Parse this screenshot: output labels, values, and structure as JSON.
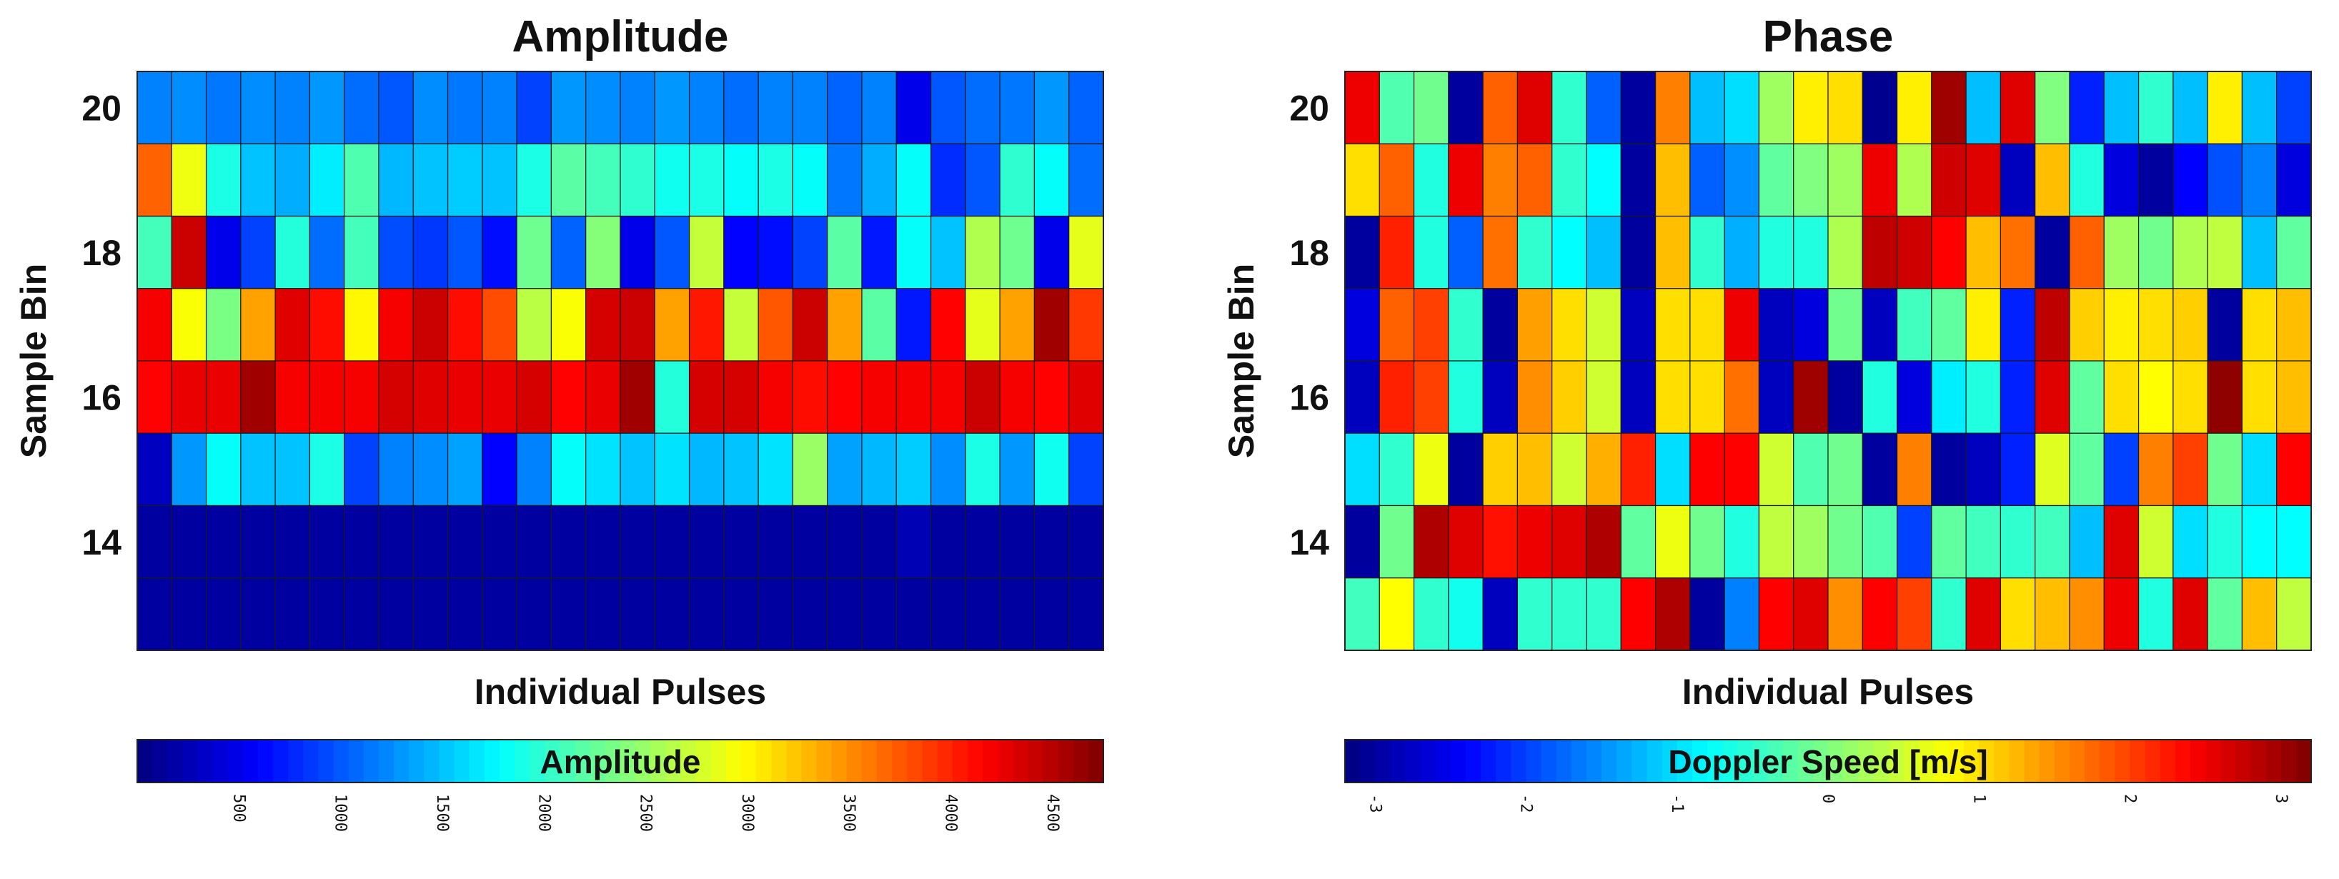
{
  "chart_data": [
    {
      "type": "heatmap",
      "title": "Amplitude",
      "xlabel": "Individual Pulses",
      "ylabel": "Sample Bin",
      "y_rows": [
        20,
        19,
        18,
        17,
        16,
        15,
        14,
        13
      ],
      "y_tick_labels": [
        "20",
        "18",
        "16",
        "14"
      ],
      "y_ticks": [
        20,
        18,
        16,
        14
      ],
      "n_pulses": 28,
      "colorbar": {
        "label": "Amplitude",
        "range": [
          0,
          4750
        ],
        "ticks": [
          500,
          1000,
          1500,
          2000,
          2500,
          3000,
          3500,
          4000,
          4500
        ],
        "tick_labels": [
          "500",
          "1000",
          "1500",
          "2000",
          "2500",
          "3000",
          "3500",
          "4000",
          "4500"
        ]
      },
      "values": [
        [
          1200,
          1250,
          1150,
          1250,
          1200,
          1300,
          1100,
          1000,
          1250,
          1150,
          1200,
          900,
          1300,
          1250,
          1200,
          1300,
          1200,
          1100,
          1200,
          1200,
          1050,
          1200,
          500,
          1000,
          1100,
          1150,
          1300,
          1050
        ],
        [
          3700,
          2900,
          1900,
          1500,
          1400,
          1700,
          2150,
          1450,
          1500,
          1550,
          1500,
          1900,
          2200,
          2100,
          2000,
          1850,
          1900,
          1800,
          1900,
          1800,
          1150,
          1400,
          1800,
          800,
          1000,
          2000,
          1800,
          1100
        ],
        [
          2100,
          4400,
          500,
          900,
          1950,
          1100,
          2100,
          950,
          850,
          1000,
          650,
          2300,
          1050,
          2400,
          500,
          1000,
          2700,
          600,
          650,
          900,
          2200,
          700,
          1800,
          1500,
          2600,
          2300,
          500,
          2850
        ],
        [
          4200,
          2950,
          2350,
          3400,
          4300,
          4100,
          3000,
          4200,
          4400,
          4100,
          3800,
          2650,
          2950,
          4350,
          4400,
          3400,
          4050,
          2700,
          3750,
          4400,
          3400,
          2200,
          700,
          4150,
          2850,
          3400,
          4600,
          3900
        ],
        [
          4150,
          4250,
          4250,
          4600,
          4200,
          4200,
          4200,
          4350,
          4300,
          4250,
          4250,
          4350,
          4150,
          4250,
          4600,
          1950,
          4350,
          4350,
          4200,
          4100,
          4150,
          4200,
          4200,
          4200,
          4400,
          4200,
          4150,
          4300
        ],
        [
          300,
          1300,
          1800,
          1500,
          1500,
          1900,
          900,
          1200,
          1250,
          1350,
          600,
          1200,
          1800,
          1650,
          1500,
          1650,
          1450,
          1500,
          1650,
          2500,
          1350,
          1450,
          1550,
          1250,
          1900,
          1300,
          1850,
          900
        ],
        [
          150,
          150,
          150,
          150,
          150,
          150,
          150,
          150,
          150,
          150,
          150,
          150,
          150,
          150,
          150,
          150,
          150,
          150,
          150,
          150,
          150,
          150,
          250,
          150,
          150,
          150,
          150,
          150
        ],
        [
          150,
          150,
          150,
          150,
          150,
          150,
          150,
          150,
          150,
          150,
          150,
          150,
          150,
          150,
          150,
          150,
          150,
          150,
          150,
          150,
          150,
          150,
          150,
          150,
          150,
          150,
          150,
          150
        ]
      ]
    },
    {
      "type": "heatmap",
      "title": "Phase",
      "xlabel": "Individual Pulses",
      "ylabel": "Sample Bin",
      "y_rows": [
        20,
        19,
        18,
        17,
        16,
        15,
        14,
        13
      ],
      "y_tick_labels": [
        "20",
        "18",
        "16",
        "14"
      ],
      "y_ticks": [
        20,
        18,
        16,
        14
      ],
      "n_pulses": 28,
      "colorbar": {
        "label": "Doppler Speed [m/s]",
        "range": [
          -3.2,
          3.2
        ],
        "ticks": [
          -3,
          -2,
          -1,
          0,
          1,
          2,
          3
        ],
        "tick_labels": [
          "-3",
          "-2",
          "-1",
          "0",
          "1",
          "2",
          "3"
        ]
      },
      "values": [
        [
          2.5,
          -0.3,
          -0.1,
          -3.0,
          1.8,
          2.6,
          -0.5,
          -1.8,
          -3.0,
          1.6,
          -1.2,
          -1.0,
          0.2,
          0.9,
          1.0,
          -3.1,
          0.9,
          3.0,
          -1.2,
          2.6,
          0.0,
          -2.2,
          -1.2,
          -0.5,
          -1.2,
          0.9,
          -1.2,
          -2.0
        ],
        [
          1.0,
          1.8,
          -0.6,
          2.5,
          1.6,
          1.8,
          -0.5,
          -0.8,
          -3.0,
          1.2,
          -1.8,
          -1.5,
          -0.2,
          0.0,
          0.2,
          2.5,
          0.3,
          2.7,
          2.6,
          -2.8,
          1.2,
          -0.6,
          -2.6,
          -3.0,
          -2.4,
          -1.9,
          -1.6,
          -2.6
        ],
        [
          -3.0,
          2.2,
          -0.6,
          -1.8,
          1.7,
          -0.5,
          -0.8,
          -1.2,
          -3.0,
          1.2,
          -0.5,
          -1.3,
          -0.6,
          -0.6,
          0.3,
          2.8,
          2.7,
          2.4,
          1.2,
          1.7,
          -3.0,
          1.8,
          0.2,
          -0.1,
          0.3,
          0.4,
          -1.2,
          -0.2
        ],
        [
          -2.6,
          1.8,
          2.0,
          -0.5,
          -3.0,
          1.4,
          1.0,
          0.5,
          -2.8,
          1.0,
          1.0,
          2.5,
          -2.8,
          -2.6,
          -0.1,
          -2.8,
          -0.4,
          -0.2,
          0.9,
          -2.2,
          2.8,
          1.1,
          0.9,
          1.0,
          1.1,
          -3.0,
          1.0,
          1.2
        ],
        [
          -2.8,
          2.2,
          2.0,
          -0.6,
          -2.8,
          1.5,
          1.1,
          0.5,
          -2.8,
          1.0,
          1.0,
          1.7,
          -2.8,
          3.0,
          -3.0,
          -0.6,
          -2.6,
          -0.9,
          -0.6,
          -2.2,
          2.6,
          -0.2,
          1.0,
          0.8,
          1.0,
          3.1,
          1.0,
          1.2
        ],
        [
          -1.0,
          -0.5,
          0.7,
          -3.0,
          1.1,
          1.2,
          0.5,
          1.3,
          2.2,
          -1.0,
          2.4,
          2.4,
          0.5,
          -0.3,
          -0.1,
          -3.0,
          1.6,
          -3.0,
          -2.8,
          -2.2,
          0.6,
          -0.2,
          -2.0,
          1.6,
          2.0,
          -0.1,
          -1.0,
          2.4
        ],
        [
          -3.0,
          -0.1,
          2.9,
          2.6,
          2.3,
          2.5,
          2.6,
          2.9,
          -0.2,
          0.7,
          -0.1,
          -0.6,
          0.4,
          0.2,
          -0.1,
          -0.3,
          -2.0,
          -0.2,
          -0.4,
          -0.5,
          -0.4,
          -1.2,
          2.6,
          0.5,
          -1.0,
          -0.6,
          -0.8,
          -0.8
        ],
        [
          -0.4,
          0.8,
          -0.5,
          -0.7,
          -2.8,
          -0.5,
          -0.5,
          -0.5,
          2.4,
          2.9,
          -3.0,
          -1.6,
          2.4,
          2.6,
          1.5,
          2.4,
          2.0,
          -0.5,
          2.6,
          1.0,
          1.2,
          1.5,
          2.5,
          -0.6,
          2.6,
          -0.2,
          1.2,
          0.4
        ]
      ]
    }
  ]
}
